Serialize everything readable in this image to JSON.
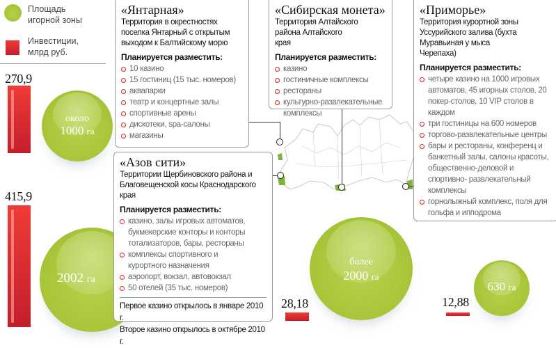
{
  "legend": {
    "area_label": "Площадь игорной зоны",
    "investment_label": "Инвестиции, млрд руб.",
    "area_color": "#a9c63a",
    "investment_color": "#d8282f"
  },
  "zones": [
    {
      "title": "«Янтарная»",
      "description": "Территория в окрестностях поселка Янтарный с открытым выходом к Балтийскому морю",
      "plan_label": "Планируется разместить:",
      "items": [
        "10 казино",
        "15 гостиниц (15 тыс. номеров)",
        "аквапарки",
        "театр и концертные залы",
        "спортивные арены",
        "дискотеки, spa-салоны",
        "магазины"
      ],
      "investment": "270,9",
      "area": {
        "prefix": "около",
        "value": "1000",
        "unit": "га"
      }
    },
    {
      "title": "«Азов сити»",
      "description": "Территории Щербиновского района и Благовещенской косы Краснодарского края",
      "plan_label": "Планируется разместить:",
      "items": [
        "казино, залы игровых автоматов, букмекерские конторы и конторы тотализаторов, бары, рестораны",
        "комплексы спортивного и курортного назначения",
        "аэропорт, вокзал, автовокзал",
        "50 отелей (35 тыс. номеров)"
      ],
      "notes": [
        "Первое казино открылось в январе 2010 г.",
        "Второе казино открылось в октябре 2010 г."
      ],
      "investment": "415,9",
      "area": {
        "prefix": "",
        "value": "2002",
        "unit": "га"
      }
    },
    {
      "title": "«Сибирская монета»",
      "description": "Территория Алтайского района Алтайского края",
      "plan_label": "Планируется разместить:",
      "items": [
        "казино",
        "гостиничные комплексы",
        "рестораны",
        "культурно-развлекательные комплексы"
      ],
      "investment": "28,18",
      "area": {
        "prefix": "более",
        "value": "2000",
        "unit": "га"
      }
    },
    {
      "title": "«Приморье»",
      "description": "Территория курортной зоны Уссурийского залива (бухта Муравьиная у мыса Черепаха)",
      "plan_label": "Планируется разместить:",
      "items": [
        "четыре казино на 1000 игровых автоматов, 45 игорных столов, 20 покер-столов, 10 VIP столов в каждом",
        "три гостиницы на 600 номеров",
        "торгово-развлекательные центры",
        "бары и рестораны, конференц и банкетный залы, салоны красоты, общественно-деловой и спортивно- развлекательный комплексы",
        "горнолыжный комплекс, поля для гольфа и ипподрома"
      ],
      "investment": "12,88",
      "area": {
        "prefix": "",
        "value": "630",
        "unit": "га"
      }
    }
  ]
}
